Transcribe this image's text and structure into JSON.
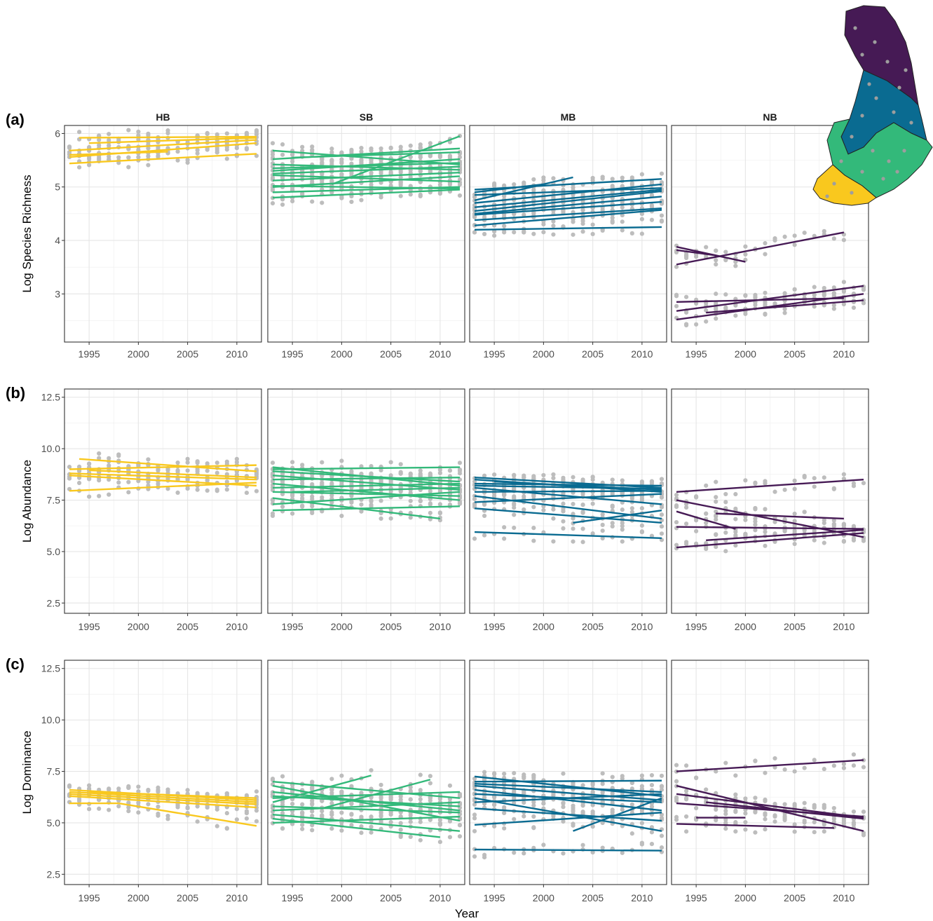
{
  "figure": {
    "x_title": "Year"
  },
  "colors": {
    "HB": "#f9c81e",
    "SB": "#33b97a",
    "MB": "#0a6b91",
    "NB": "#461a55",
    "points": "#bdbdbd",
    "grid_major": "#e6e6e6",
    "grid_minor": "#f2f2f2",
    "panel_border": "#333333",
    "map_points": "#9e9e9e",
    "map_outline": "#222222"
  },
  "map": {
    "type": "region-map-icon",
    "regions": [
      "NB",
      "MB",
      "SB",
      "HB"
    ]
  },
  "chart_data": [
    {
      "id": "a",
      "tag": "(a)",
      "type": "line",
      "ylabel": "Log Species Richness",
      "xlim": [
        1992.5,
        2012.5
      ],
      "ylim": [
        2.1,
        6.15
      ],
      "xticks": [
        1995,
        2000,
        2005,
        2010
      ],
      "yticks": [
        3,
        4,
        5,
        6
      ],
      "ytick_labels": [
        "3",
        "4",
        "5",
        "6"
      ],
      "facets": [
        {
          "name": "HB",
          "strip": true,
          "lines": [
            [
              1993,
              5.44,
              2012,
              5.62
            ],
            [
              1993,
              5.56,
              2012,
              5.82
            ],
            [
              1993,
              5.68,
              2012,
              5.88
            ],
            [
              1994,
              5.92,
              2012,
              5.94
            ],
            [
              1993,
              5.6,
              2003,
              5.66
            ],
            [
              1995,
              5.82,
              2012,
              5.92
            ]
          ]
        },
        {
          "name": "SB",
          "strip": true,
          "lines": [
            [
              1993,
              5.68,
              2012,
              5.42
            ],
            [
              1993,
              5.52,
              2012,
              5.72
            ],
            [
              1993,
              5.42,
              2012,
              5.32
            ],
            [
              1993,
              5.3,
              2012,
              5.52
            ],
            [
              1993,
              5.22,
              2012,
              5.1
            ],
            [
              1993,
              5.12,
              2012,
              5.27
            ],
            [
              1993,
              5.0,
              2012,
              5.2
            ],
            [
              1993,
              4.9,
              2012,
              5.0
            ],
            [
              1993,
              4.8,
              2012,
              4.95
            ],
            [
              1995,
              5.55,
              2012,
              5.65
            ],
            [
              1993,
              5.35,
              2012,
              5.45
            ],
            [
              1999,
              5.05,
              2012,
              5.95
            ],
            [
              1993,
              5.02,
              2012,
              4.97
            ],
            [
              1993,
              5.25,
              2012,
              5.38
            ]
          ]
        },
        {
          "name": "MB",
          "strip": true,
          "lines": [
            [
              1993,
              4.95,
              2012,
              5.15
            ],
            [
              1993,
              4.85,
              2012,
              4.98
            ],
            [
              1993,
              4.75,
              2003,
              5.18
            ],
            [
              1993,
              4.62,
              2012,
              4.95
            ],
            [
              1993,
              4.55,
              2012,
              4.92
            ],
            [
              1993,
              4.48,
              2012,
              4.72
            ],
            [
              1993,
              4.38,
              2012,
              4.6
            ],
            [
              1993,
              4.28,
              2012,
              4.57
            ],
            [
              1993,
              4.2,
              2012,
              4.25
            ],
            [
              1993,
              4.7,
              2012,
              5.05
            ],
            [
              1993,
              4.9,
              2000,
              5.05
            ],
            [
              1993,
              4.5,
              2012,
              4.82
            ]
          ]
        },
        {
          "name": "NB",
          "strip": true,
          "lines": [
            [
              1993,
              3.55,
              2010,
              4.15
            ],
            [
              1993,
              3.88,
              2000,
              3.6
            ],
            [
              1993,
              3.82,
              1997,
              3.72
            ],
            [
              1993,
              2.85,
              2010,
              2.92
            ],
            [
              1993,
              2.68,
              2012,
              3.15
            ],
            [
              1993,
              2.52,
              2012,
              3.0
            ],
            [
              1996,
              2.65,
              2012,
              2.88
            ]
          ]
        }
      ]
    },
    {
      "id": "b",
      "tag": "(b)",
      "type": "line",
      "ylabel": "Log Abundance",
      "xlim": [
        1992.5,
        2012.5
      ],
      "ylim": [
        2.0,
        12.9
      ],
      "xticks": [
        1995,
        2000,
        2005,
        2010
      ],
      "yticks": [
        2.5,
        5.0,
        7.5,
        10.0,
        12.5
      ],
      "ytick_labels": [
        "2.5",
        "5.0",
        "7.5",
        "10.0",
        "12.5"
      ],
      "facets": [
        {
          "name": "HB",
          "strip": false,
          "lines": [
            [
              1994,
              9.5,
              2012,
              8.9
            ],
            [
              1993,
              9.0,
              2012,
              9.2
            ],
            [
              1993,
              8.8,
              2012,
              8.5
            ],
            [
              1993,
              8.7,
              2012,
              8.2
            ],
            [
              1993,
              7.95,
              2012,
              8.35
            ],
            [
              1995,
              8.95,
              2012,
              8.6
            ]
          ]
        },
        {
          "name": "SB",
          "strip": false,
          "lines": [
            [
              1993,
              9.1,
              2012,
              8.2
            ],
            [
              1993,
              9.0,
              2012,
              9.1
            ],
            [
              1993,
              8.7,
              2012,
              8.0
            ],
            [
              1993,
              8.5,
              2012,
              8.6
            ],
            [
              1993,
              8.3,
              2012,
              7.5
            ],
            [
              1993,
              8.1,
              2012,
              8.3
            ],
            [
              1993,
              7.9,
              2012,
              7.7
            ],
            [
              1993,
              7.6,
              2010,
              6.6
            ],
            [
              1993,
              7.3,
              2012,
              7.9
            ],
            [
              1993,
              7.0,
              2012,
              7.2
            ],
            [
              1993,
              8.9,
              2012,
              8.4
            ],
            [
              1995,
              7.9,
              2012,
              8.1
            ]
          ]
        },
        {
          "name": "MB",
          "strip": false,
          "lines": [
            [
              1993,
              8.6,
              2012,
              8.1
            ],
            [
              1993,
              8.5,
              2012,
              7.9
            ],
            [
              1993,
              8.3,
              2012,
              8.2
            ],
            [
              1993,
              8.1,
              2012,
              7.3
            ],
            [
              1993,
              7.9,
              2012,
              7.95
            ],
            [
              1993,
              7.7,
              2012,
              6.6
            ],
            [
              1993,
              7.4,
              2012,
              7.8
            ],
            [
              1993,
              7.1,
              2012,
              6.4
            ],
            [
              1993,
              5.95,
              2012,
              5.65
            ],
            [
              2003,
              6.4,
              2012,
              7.0
            ],
            [
              1993,
              8.2,
              2012,
              8.05
            ],
            [
              1995,
              8.4,
              2012,
              8.0
            ]
          ]
        },
        {
          "name": "NB",
          "strip": false,
          "lines": [
            [
              1993,
              7.9,
              2012,
              8.5
            ],
            [
              1993,
              7.5,
              2012,
              5.7
            ],
            [
              1993,
              6.95,
              1999,
              6.1
            ],
            [
              1993,
              6.2,
              2012,
              6.1
            ],
            [
              1996,
              5.55,
              2012,
              6.05
            ],
            [
              1993,
              5.2,
              2012,
              5.9
            ],
            [
              1997,
              6.85,
              2010,
              6.6
            ]
          ]
        }
      ]
    },
    {
      "id": "c",
      "tag": "(c)",
      "type": "line",
      "ylabel": "Log Dominance",
      "xlim": [
        1992.5,
        2012.5
      ],
      "ylim": [
        2.0,
        12.9
      ],
      "xticks": [
        1995,
        2000,
        2005,
        2010
      ],
      "yticks": [
        2.5,
        5.0,
        7.5,
        10.0,
        12.5
      ],
      "ytick_labels": [
        "2.5",
        "5.0",
        "7.5",
        "10.0",
        "12.5"
      ],
      "facets": [
        {
          "name": "HB",
          "strip": false,
          "lines": [
            [
              1993,
              6.6,
              2012,
              6.1
            ],
            [
              1993,
              6.5,
              2012,
              6.0
            ],
            [
              1993,
              6.4,
              2012,
              5.9
            ],
            [
              1993,
              6.3,
              2012,
              5.75
            ],
            [
              1993,
              5.95,
              1998,
              5.95
            ],
            [
              1998,
              5.95,
              2012,
              4.85
            ],
            [
              1995,
              6.5,
              2012,
              6.2
            ]
          ]
        },
        {
          "name": "SB",
          "strip": false,
          "lines": [
            [
              1993,
              7.0,
              2012,
              6.2
            ],
            [
              1993,
              6.8,
              2012,
              5.1
            ],
            [
              1993,
              6.5,
              2012,
              5.6
            ],
            [
              1993,
              6.2,
              2012,
              6.5
            ],
            [
              1993,
              6.0,
              2003,
              7.3
            ],
            [
              1993,
              5.8,
              2012,
              5.5
            ],
            [
              1993,
              5.6,
              2012,
              6.0
            ],
            [
              1993,
              5.4,
              2012,
              4.6
            ],
            [
              1993,
              5.2,
              2010,
              4.3
            ],
            [
              1993,
              5.0,
              2012,
              5.3
            ],
            [
              1998,
              5.7,
              2009,
              7.1
            ],
            [
              1993,
              6.3,
              2012,
              5.8
            ]
          ]
        },
        {
          "name": "MB",
          "strip": false,
          "lines": [
            [
              1993,
              7.25,
              2012,
              6.3
            ],
            [
              1993,
              7.0,
              2012,
              7.05
            ],
            [
              1993,
              6.8,
              2012,
              6.1
            ],
            [
              1993,
              6.6,
              2012,
              5.6
            ],
            [
              1993,
              6.4,
              2012,
              6.0
            ],
            [
              1993,
              6.2,
              2012,
              4.6
            ],
            [
              1993,
              6.0,
              2012,
              6.4
            ],
            [
              1993,
              5.7,
              2012,
              5.1
            ],
            [
              1993,
              4.9,
              2012,
              5.5
            ],
            [
              2003,
              4.6,
              2012,
              6.2
            ],
            [
              1993,
              3.7,
              2012,
              3.65
            ],
            [
              1993,
              6.9,
              2012,
              6.5
            ]
          ]
        },
        {
          "name": "NB",
          "strip": false,
          "lines": [
            [
              1993,
              7.5,
              2012,
              8.05
            ],
            [
              1993,
              6.8,
              2012,
              4.6
            ],
            [
              1993,
              6.4,
              2012,
              5.25
            ],
            [
              1993,
              5.95,
              2012,
              5.3
            ],
            [
              1995,
              5.25,
              2000,
              5.25
            ],
            [
              1993,
              4.95,
              2009,
              4.75
            ],
            [
              1996,
              6.0,
              2012,
              5.2
            ]
          ]
        }
      ]
    }
  ]
}
